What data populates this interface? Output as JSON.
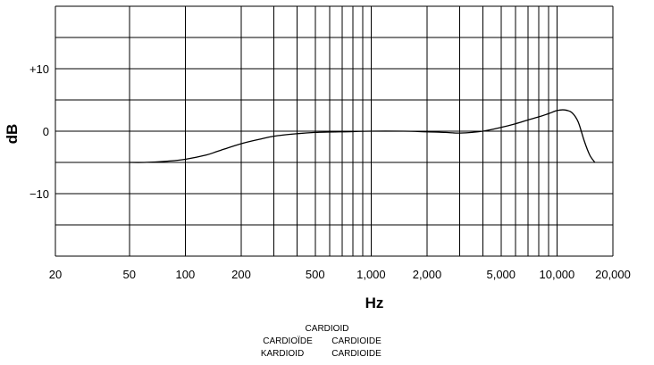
{
  "chart_data": {
    "type": "line",
    "x_scale": "log",
    "xlim": [
      20,
      20000
    ],
    "ylim": [
      -20,
      20
    ],
    "grid": true,
    "xlabel": "Hz",
    "ylabel": "dB",
    "xticks": [
      {
        "value": 20,
        "label": "20"
      },
      {
        "value": 50,
        "label": "50"
      },
      {
        "value": 100,
        "label": "100"
      },
      {
        "value": 200,
        "label": "200"
      },
      {
        "value": 500,
        "label": "500"
      },
      {
        "value": 1000,
        "label": "1,000"
      },
      {
        "value": 2000,
        "label": "2,000"
      },
      {
        "value": 5000,
        "label": "5,000"
      },
      {
        "value": 10000,
        "label": "10,000"
      },
      {
        "value": 20000,
        "label": "20,000"
      }
    ],
    "xgrid": [
      20,
      50,
      100,
      200,
      300,
      400,
      500,
      600,
      700,
      800,
      900,
      1000,
      2000,
      3000,
      4000,
      5000,
      6000,
      7000,
      8000,
      9000,
      10000,
      20000
    ],
    "yticks": [
      {
        "value": 10,
        "label": "+10"
      },
      {
        "value": 0,
        "label": "0"
      },
      {
        "value": -10,
        "label": "−10"
      }
    ],
    "ygrid": [
      -20,
      -15,
      -10,
      -5,
      0,
      5,
      10,
      15,
      20
    ],
    "series": [
      {
        "color": "#000000",
        "x": [
          50,
          60,
          80,
          100,
          130,
          150,
          200,
          250,
          300,
          400,
          500,
          700,
          1000,
          1500,
          2000,
          2500,
          3000,
          4000,
          5000,
          6000,
          7000,
          8000,
          9000,
          10000,
          11000,
          12000,
          13000,
          14000,
          15000,
          16000
        ],
        "y": [
          -5,
          -5,
          -4.8,
          -4.5,
          -3.8,
          -3.2,
          -2,
          -1.3,
          -0.8,
          -0.4,
          -0.2,
          -0.1,
          0,
          0,
          -0.1,
          -0.2,
          -0.3,
          0,
          0.6,
          1.2,
          1.8,
          2.3,
          2.8,
          3.3,
          3.4,
          3,
          1.5,
          -1.5,
          -3.8,
          -5
        ]
      }
    ],
    "pattern_labels": [
      "CARDIOID",
      "CARDIOÏDE",
      "CARDIOIDE",
      "KARDIOID",
      "CARDIOIDE"
    ]
  }
}
